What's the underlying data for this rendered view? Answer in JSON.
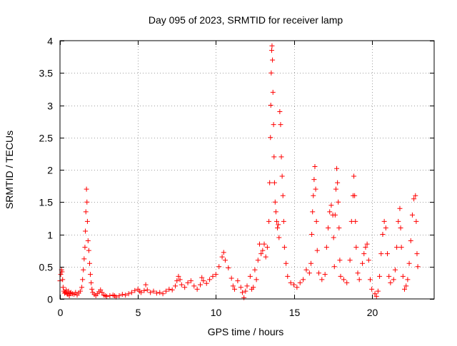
{
  "chart_data": {
    "type": "scatter",
    "title": "Day 095 of 2023, SRMTID for receiver lamp",
    "xlabel": "GPS time / hours",
    "ylabel": "SRMTID / TECUs",
    "xlim": [
      0,
      24
    ],
    "ylim": [
      0,
      4
    ],
    "x_ticks": [
      0,
      5,
      10,
      15,
      20
    ],
    "x_tick_labels": [
      "0",
      "5",
      "10",
      "15",
      "20"
    ],
    "y_ticks": [
      0,
      0.5,
      1,
      1.5,
      2,
      2.5,
      3,
      3.5,
      4
    ],
    "y_tick_labels": [
      "0",
      "0.5",
      "1",
      "1.5",
      "2",
      "2.5",
      "3",
      "3.5",
      "4"
    ],
    "grid": true,
    "marker": "+",
    "series": [
      {
        "name": "SRMTID",
        "color": "#ff0000",
        "points": [
          [
            0.0,
            0.28
          ],
          [
            0.05,
            0.38
          ],
          [
            0.1,
            0.45
          ],
          [
            0.13,
            0.42
          ],
          [
            0.17,
            0.3
          ],
          [
            0.2,
            0.18
          ],
          [
            0.25,
            0.12
          ],
          [
            0.3,
            0.09
          ],
          [
            0.35,
            0.1
          ],
          [
            0.4,
            0.14
          ],
          [
            0.45,
            0.08
          ],
          [
            0.5,
            0.07
          ],
          [
            0.55,
            0.12
          ],
          [
            0.6,
            0.05
          ],
          [
            0.65,
            0.09
          ],
          [
            0.7,
            0.1
          ],
          [
            0.8,
            0.08
          ],
          [
            0.9,
            0.07
          ],
          [
            1.0,
            0.1
          ],
          [
            1.1,
            0.06
          ],
          [
            1.2,
            0.09
          ],
          [
            1.3,
            0.12
          ],
          [
            1.4,
            0.18
          ],
          [
            1.45,
            0.3
          ],
          [
            1.5,
            0.45
          ],
          [
            1.55,
            0.62
          ],
          [
            1.6,
            0.8
          ],
          [
            1.63,
            1.05
          ],
          [
            1.66,
            1.35
          ],
          [
            1.7,
            1.7
          ],
          [
            1.73,
            1.5
          ],
          [
            1.76,
            1.2
          ],
          [
            1.8,
            0.9
          ],
          [
            1.85,
            0.75
          ],
          [
            1.9,
            0.55
          ],
          [
            1.95,
            0.38
          ],
          [
            2.0,
            0.25
          ],
          [
            2.05,
            0.15
          ],
          [
            2.1,
            0.1
          ],
          [
            2.2,
            0.07
          ],
          [
            2.3,
            0.05
          ],
          [
            2.4,
            0.08
          ],
          [
            2.5,
            0.11
          ],
          [
            2.6,
            0.14
          ],
          [
            2.7,
            0.1
          ],
          [
            2.8,
            0.06
          ],
          [
            2.9,
            0.05
          ],
          [
            3.0,
            0.04
          ],
          [
            3.2,
            0.05
          ],
          [
            3.4,
            0.06
          ],
          [
            3.5,
            0.05
          ],
          [
            3.6,
            0.03
          ],
          [
            3.8,
            0.05
          ],
          [
            4.0,
            0.07
          ],
          [
            4.2,
            0.06
          ],
          [
            4.4,
            0.08
          ],
          [
            4.6,
            0.1
          ],
          [
            4.8,
            0.13
          ],
          [
            5.0,
            0.15
          ],
          [
            5.1,
            0.12
          ],
          [
            5.2,
            0.1
          ],
          [
            5.4,
            0.13
          ],
          [
            5.5,
            0.22
          ],
          [
            5.6,
            0.14
          ],
          [
            5.8,
            0.1
          ],
          [
            6.0,
            0.12
          ],
          [
            6.2,
            0.09
          ],
          [
            6.4,
            0.1
          ],
          [
            6.6,
            0.08
          ],
          [
            6.8,
            0.12
          ],
          [
            7.0,
            0.15
          ],
          [
            7.2,
            0.14
          ],
          [
            7.4,
            0.2
          ],
          [
            7.5,
            0.28
          ],
          [
            7.6,
            0.35
          ],
          [
            7.7,
            0.3
          ],
          [
            7.8,
            0.22
          ],
          [
            8.0,
            0.18
          ],
          [
            8.2,
            0.25
          ],
          [
            8.4,
            0.28
          ],
          [
            8.6,
            0.2
          ],
          [
            8.8,
            0.15
          ],
          [
            9.0,
            0.22
          ],
          [
            9.1,
            0.33
          ],
          [
            9.2,
            0.28
          ],
          [
            9.4,
            0.24
          ],
          [
            9.6,
            0.3
          ],
          [
            9.8,
            0.35
          ],
          [
            10.0,
            0.38
          ],
          [
            10.2,
            0.5
          ],
          [
            10.4,
            0.65
          ],
          [
            10.5,
            0.72
          ],
          [
            10.6,
            0.6
          ],
          [
            10.8,
            0.48
          ],
          [
            11.0,
            0.32
          ],
          [
            11.1,
            0.2
          ],
          [
            11.2,
            0.15
          ],
          [
            11.4,
            0.28
          ],
          [
            11.6,
            0.18
          ],
          [
            11.7,
            0.1
          ],
          [
            11.8,
            0.02
          ],
          [
            11.9,
            0.12
          ],
          [
            12.0,
            0.2
          ],
          [
            12.2,
            0.35
          ],
          [
            12.3,
            0.15
          ],
          [
            12.4,
            0.18
          ],
          [
            12.5,
            0.45
          ],
          [
            12.6,
            0.3
          ],
          [
            12.7,
            0.6
          ],
          [
            12.8,
            0.85
          ],
          [
            12.9,
            0.7
          ],
          [
            13.0,
            0.75
          ],
          [
            13.1,
            0.85
          ],
          [
            13.2,
            0.65
          ],
          [
            13.3,
            0.8
          ],
          [
            13.4,
            1.2
          ],
          [
            13.45,
            1.8
          ],
          [
            13.5,
            2.5
          ],
          [
            13.52,
            3.0
          ],
          [
            13.55,
            3.5
          ],
          [
            13.58,
            3.85
          ],
          [
            13.6,
            3.92
          ],
          [
            13.63,
            3.7
          ],
          [
            13.66,
            3.2
          ],
          [
            13.7,
            2.7
          ],
          [
            13.73,
            2.2
          ],
          [
            13.76,
            1.8
          ],
          [
            13.8,
            1.5
          ],
          [
            13.85,
            1.35
          ],
          [
            13.9,
            1.2
          ],
          [
            13.95,
            1.1
          ],
          [
            14.0,
            1.15
          ],
          [
            14.05,
            0.95
          ],
          [
            14.1,
            2.9
          ],
          [
            14.15,
            2.7
          ],
          [
            14.2,
            2.2
          ],
          [
            14.25,
            1.9
          ],
          [
            14.3,
            1.6
          ],
          [
            14.35,
            1.2
          ],
          [
            14.4,
            0.8
          ],
          [
            14.5,
            0.55
          ],
          [
            14.6,
            0.35
          ],
          [
            14.8,
            0.25
          ],
          [
            15.0,
            0.22
          ],
          [
            15.2,
            0.18
          ],
          [
            15.4,
            0.25
          ],
          [
            15.6,
            0.3
          ],
          [
            15.8,
            0.45
          ],
          [
            16.0,
            0.4
          ],
          [
            16.1,
            0.55
          ],
          [
            16.15,
            1.0
          ],
          [
            16.2,
            1.35
          ],
          [
            16.25,
            1.6
          ],
          [
            16.3,
            1.85
          ],
          [
            16.35,
            2.05
          ],
          [
            16.4,
            1.7
          ],
          [
            16.45,
            1.2
          ],
          [
            16.5,
            0.75
          ],
          [
            16.6,
            0.4
          ],
          [
            16.8,
            0.3
          ],
          [
            17.0,
            0.38
          ],
          [
            17.1,
            0.8
          ],
          [
            17.2,
            1.1
          ],
          [
            17.3,
            1.35
          ],
          [
            17.4,
            1.45
          ],
          [
            17.5,
            1.3
          ],
          [
            17.55,
            0.95
          ],
          [
            17.6,
            0.5
          ],
          [
            17.65,
            1.3
          ],
          [
            17.7,
            1.7
          ],
          [
            17.75,
            2.02
          ],
          [
            17.8,
            1.8
          ],
          [
            17.85,
            1.5
          ],
          [
            17.9,
            1.1
          ],
          [
            17.95,
            0.6
          ],
          [
            18.0,
            0.35
          ],
          [
            18.2,
            0.3
          ],
          [
            18.4,
            0.25
          ],
          [
            18.6,
            0.6
          ],
          [
            18.7,
            1.2
          ],
          [
            18.8,
            1.6
          ],
          [
            18.85,
            1.9
          ],
          [
            18.9,
            1.6
          ],
          [
            18.95,
            1.2
          ],
          [
            19.0,
            0.8
          ],
          [
            19.1,
            0.4
          ],
          [
            19.2,
            0.3
          ],
          [
            19.4,
            0.55
          ],
          [
            19.5,
            0.7
          ],
          [
            19.6,
            0.8
          ],
          [
            19.7,
            0.85
          ],
          [
            19.8,
            0.6
          ],
          [
            19.9,
            0.3
          ],
          [
            20.0,
            0.15
          ],
          [
            20.2,
            0.08
          ],
          [
            20.3,
            0.04
          ],
          [
            20.4,
            0.12
          ],
          [
            20.5,
            0.35
          ],
          [
            20.6,
            0.7
          ],
          [
            20.7,
            1.0
          ],
          [
            20.8,
            1.2
          ],
          [
            20.9,
            1.1
          ],
          [
            21.0,
            0.7
          ],
          [
            21.1,
            0.35
          ],
          [
            21.2,
            0.25
          ],
          [
            21.4,
            0.3
          ],
          [
            21.5,
            0.45
          ],
          [
            21.6,
            0.8
          ],
          [
            21.7,
            1.2
          ],
          [
            21.8,
            1.4
          ],
          [
            21.85,
            1.1
          ],
          [
            21.9,
            0.8
          ],
          [
            22.0,
            0.35
          ],
          [
            22.1,
            0.15
          ],
          [
            22.2,
            0.2
          ],
          [
            22.3,
            0.3
          ],
          [
            22.4,
            0.55
          ],
          [
            22.5,
            0.9
          ],
          [
            22.6,
            1.3
          ],
          [
            22.7,
            1.55
          ],
          [
            22.8,
            1.6
          ],
          [
            22.85,
            1.2
          ],
          [
            22.9,
            0.7
          ],
          [
            22.95,
            0.5
          ]
        ]
      }
    ]
  }
}
